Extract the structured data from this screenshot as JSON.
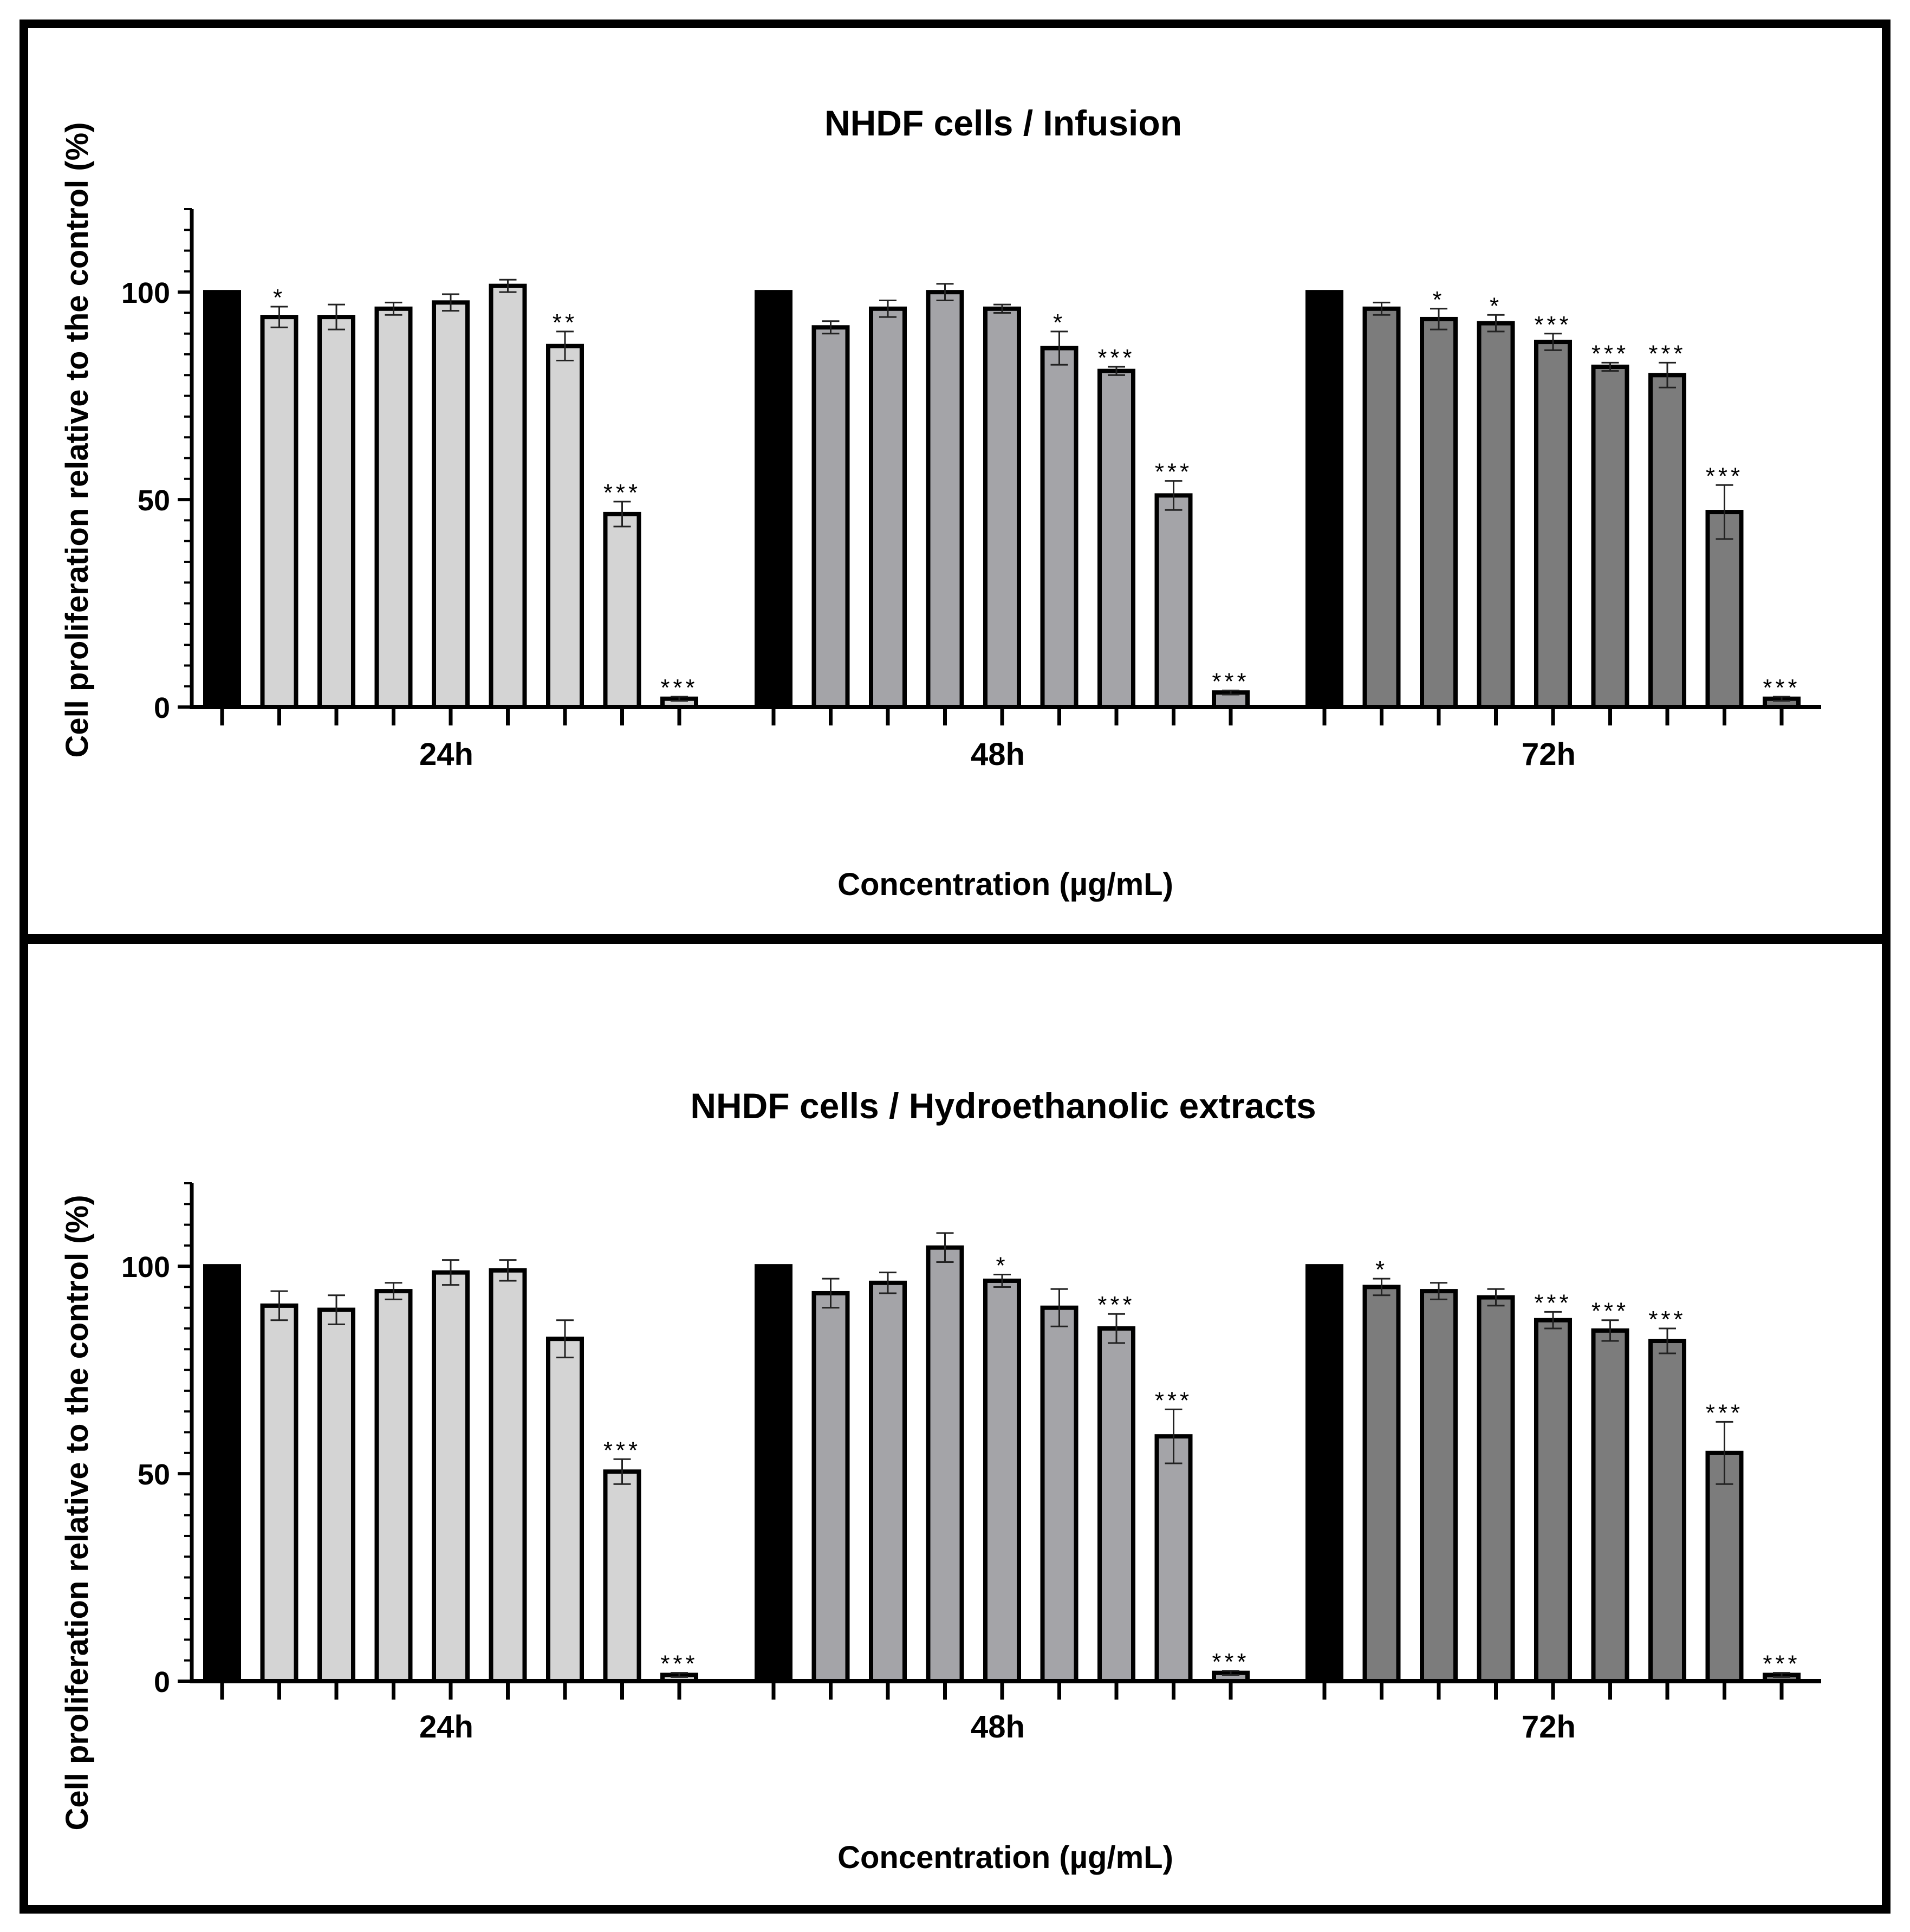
{
  "chart_data": [
    {
      "type": "bar",
      "title": "NHDF cells / Infusion",
      "xlabel": "Concentration (µg/mL)",
      "ylabel": "Cell proliferation relative to the control (%)",
      "ylim": [
        0,
        120
      ],
      "yticks": [
        0,
        50,
        100
      ],
      "groups": [
        {
          "label": "24h",
          "color": "#d4d4d4",
          "values": [
            100,
            94,
            94,
            96,
            97.5,
            101.5,
            87,
            46.5,
            2
          ],
          "errors": [
            0,
            2.5,
            3,
            1.5,
            2,
            1.5,
            3.5,
            3,
            0.5
          ],
          "significance": [
            "",
            "*",
            "",
            "",
            "",
            "",
            "**",
            "***",
            "***"
          ]
        },
        {
          "label": "48h",
          "color": "#a4a4a8",
          "values": [
            100,
            91.5,
            96,
            100,
            96,
            86.5,
            81,
            51,
            3.5
          ],
          "errors": [
            0,
            1.5,
            2,
            2,
            1,
            4,
            1,
            3.5,
            0.5
          ],
          "significance": [
            "",
            "",
            "",
            "",
            "",
            "*",
            "***",
            "***",
            "***"
          ]
        },
        {
          "label": "72h",
          "color": "#7c7c7c",
          "values": [
            100,
            96,
            93.5,
            92.5,
            88,
            82,
            80,
            47,
            2
          ],
          "errors": [
            0,
            1.5,
            2.5,
            2,
            2,
            1,
            3,
            6.5,
            0.5
          ],
          "significance": [
            "",
            "",
            "*",
            "*",
            "***",
            "***",
            "***",
            "***",
            "***"
          ]
        }
      ]
    },
    {
      "type": "bar",
      "title": "NHDF cells / Hydroethanolic extracts",
      "xlabel": "Concentration (µg/mL)",
      "ylabel": "Cell proliferation relative to the control (%)",
      "ylim": [
        0,
        120
      ],
      "yticks": [
        0,
        50,
        100
      ],
      "groups": [
        {
          "label": "24h",
          "color": "#d4d4d4",
          "values": [
            100,
            90.5,
            89.5,
            94,
            98.5,
            99,
            82.5,
            50.5,
            1.5
          ],
          "errors": [
            0,
            3.5,
            3.5,
            2,
            3,
            2.5,
            4.5,
            3,
            0.5
          ],
          "significance": [
            "",
            "",
            "",
            "",
            "",
            "",
            "",
            "***",
            "***"
          ]
        },
        {
          "label": "48h",
          "color": "#a4a4a8",
          "values": [
            100,
            93.5,
            96,
            104.5,
            96.5,
            90,
            85,
            59,
            2
          ],
          "errors": [
            0,
            3.5,
            2.5,
            3.5,
            1.5,
            4.5,
            3.5,
            6.5,
            0.5
          ],
          "significance": [
            "",
            "",
            "",
            "",
            "*",
            "",
            "***",
            "***",
            "***"
          ]
        },
        {
          "label": "72h",
          "color": "#7c7c7c",
          "values": [
            100,
            95,
            94,
            92.5,
            87,
            84.5,
            82,
            55,
            1.5
          ],
          "errors": [
            0,
            2,
            2,
            2,
            2,
            2.5,
            3,
            7.5,
            0.5
          ],
          "significance": [
            "",
            "*",
            "",
            "",
            "***",
            "***",
            "***",
            "***",
            "***"
          ]
        }
      ]
    }
  ]
}
